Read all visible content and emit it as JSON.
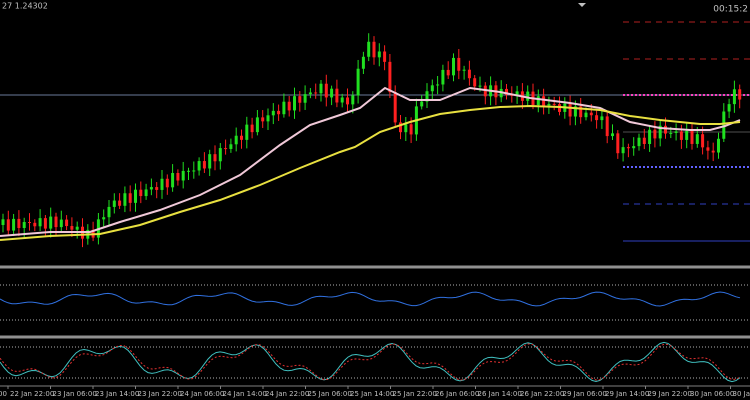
{
  "header": {
    "symbol_price": "27 1.24302",
    "timer": "00:15:2"
  },
  "time_axis": {
    "labels": [
      "00",
      "22 Jan 22:00",
      "23 Jan 06:00",
      "23 Jan 14:00",
      "23 Jan 22:00",
      "24 Jan 06:00",
      "24 Jan 14:00",
      "24 Jan 22:00",
      "25 Jan 06:00",
      "25 Jan 14:00",
      "25 Jan 22:00",
      "26 Jan 06:00",
      "26 Jan 14:00",
      "26 Jan 22:00",
      "29 Jan 06:00",
      "29 Jan 14:00",
      "29 Jan 22:00",
      "30 Jan 06:00",
      "30 Jan 14:00"
    ]
  }
}
